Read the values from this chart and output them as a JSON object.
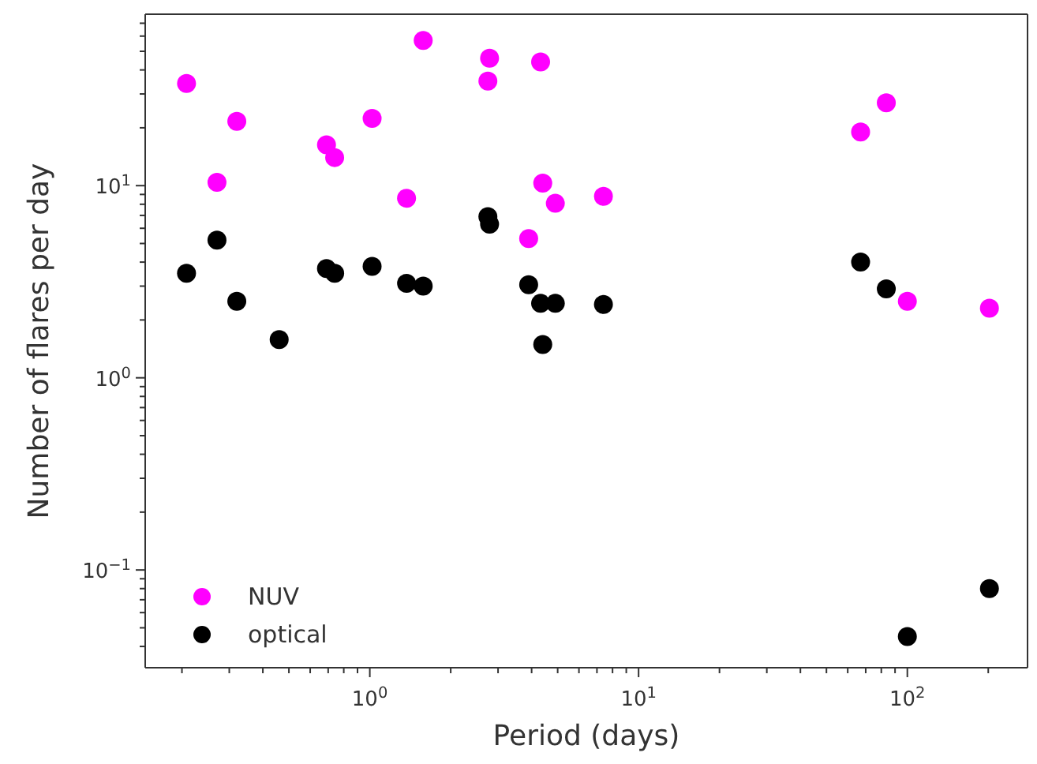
{
  "chart_data": {
    "type": "scatter",
    "xlabel": "Period (days)",
    "ylabel": "Number of flares per day",
    "log": "xy",
    "grid": false,
    "legend": "bottom left",
    "marker": "circle",
    "xlim": [
      0.146,
      280
    ],
    "ylim": [
      0.031,
      78
    ],
    "xticks": [
      {
        "value": 0.2,
        "label": null
      },
      {
        "value": 0.3,
        "label": null
      },
      {
        "value": 0.4,
        "label": null
      },
      {
        "value": 0.5,
        "label": null
      },
      {
        "value": 0.6,
        "label": null
      },
      {
        "value": 0.7,
        "label": null
      },
      {
        "value": 0.8,
        "label": null
      },
      {
        "value": 0.9,
        "label": null
      },
      {
        "value": 1,
        "label": "10$^{0}$"
      },
      {
        "value": 2,
        "label": null
      },
      {
        "value": 3,
        "label": null
      },
      {
        "value": 4,
        "label": null
      },
      {
        "value": 5,
        "label": null
      },
      {
        "value": 6,
        "label": null
      },
      {
        "value": 7,
        "label": null
      },
      {
        "value": 8,
        "label": null
      },
      {
        "value": 9,
        "label": null
      },
      {
        "value": 10,
        "label": "10$^{1}$"
      },
      {
        "value": 20,
        "label": null
      },
      {
        "value": 30,
        "label": null
      },
      {
        "value": 40,
        "label": null
      },
      {
        "value": 50,
        "label": null
      },
      {
        "value": 60,
        "label": null
      },
      {
        "value": 70,
        "label": null
      },
      {
        "value": 80,
        "label": null
      },
      {
        "value": 90,
        "label": null
      },
      {
        "value": 100,
        "label": "10$^{2}$"
      },
      {
        "value": 200,
        "label": null
      }
    ],
    "yticks": [
      {
        "value": 0.04,
        "label": null
      },
      {
        "value": 0.05,
        "label": null
      },
      {
        "value": 0.06,
        "label": null
      },
      {
        "value": 0.07,
        "label": null
      },
      {
        "value": 0.08,
        "label": null
      },
      {
        "value": 0.09,
        "label": null
      },
      {
        "value": 0.1,
        "label": "10$^{−1}$"
      },
      {
        "value": 0.2,
        "label": null
      },
      {
        "value": 0.3,
        "label": null
      },
      {
        "value": 0.4,
        "label": null
      },
      {
        "value": 0.5,
        "label": null
      },
      {
        "value": 0.6,
        "label": null
      },
      {
        "value": 0.7,
        "label": null
      },
      {
        "value": 0.8,
        "label": null
      },
      {
        "value": 0.9,
        "label": null
      },
      {
        "value": 1,
        "label": "10$^{0}$"
      },
      {
        "value": 2,
        "label": null
      },
      {
        "value": 3,
        "label": null
      },
      {
        "value": 4,
        "label": null
      },
      {
        "value": 5,
        "label": null
      },
      {
        "value": 6,
        "label": null
      },
      {
        "value": 7,
        "label": null
      },
      {
        "value": 8,
        "label": null
      },
      {
        "value": 9,
        "label": null
      },
      {
        "value": 10,
        "label": "10$^{1}$"
      },
      {
        "value": 20,
        "label": null
      },
      {
        "value": 30,
        "label": null
      },
      {
        "value": 40,
        "label": null
      },
      {
        "value": 50,
        "label": null
      },
      {
        "value": 60,
        "label": null
      },
      {
        "value": 70,
        "label": null
      }
    ],
    "series": [
      {
        "name": "NUV",
        "color": "#ff00ff",
        "x": [
          0.208,
          0.27,
          0.32,
          0.69,
          0.74,
          1.02,
          1.37,
          1.58,
          2.79,
          2.75,
          4.32,
          4.4,
          4.9,
          3.9,
          7.4,
          83.5,
          67,
          100,
          202
        ],
        "values": [
          34,
          10.4,
          21.6,
          16.3,
          14,
          22.4,
          8.6,
          57,
          46,
          35,
          44,
          10.3,
          8.1,
          5.3,
          8.8,
          27,
          19,
          2.5,
          2.3
        ]
      },
      {
        "name": "optical",
        "color": "#000000",
        "x": [
          0.208,
          0.27,
          0.32,
          0.46,
          0.69,
          0.74,
          1.02,
          1.37,
          1.58,
          2.75,
          2.79,
          3.9,
          4.32,
          4.9,
          4.4,
          7.4,
          67,
          83.5,
          100,
          202
        ],
        "values": [
          3.5,
          5.2,
          2.5,
          1.58,
          3.7,
          3.5,
          3.8,
          3.1,
          3.0,
          6.9,
          6.3,
          3.05,
          2.44,
          2.44,
          1.49,
          2.41,
          4.0,
          2.9,
          0.045,
          0.08
        ]
      }
    ]
  }
}
